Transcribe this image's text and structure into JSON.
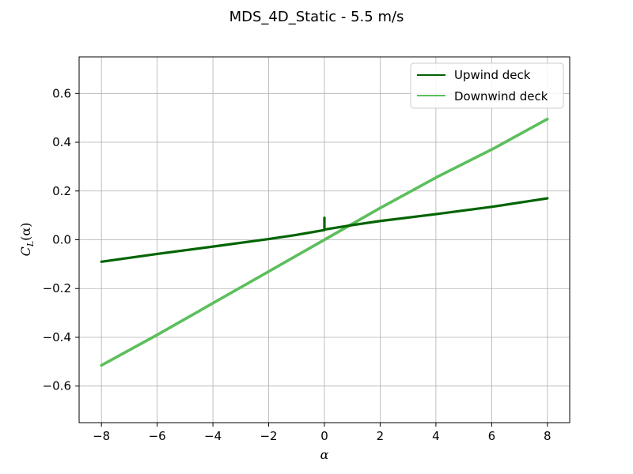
{
  "chart_data": {
    "type": "line",
    "title": "MDS_4D_Static - 5.5 m/s",
    "xlabel": "α",
    "ylabel_main": "C",
    "ylabel_sub": "L",
    "ylabel_arg": "(α)",
    "xlim": [
      -8.8,
      8.8
    ],
    "ylim": [
      -0.75,
      0.75
    ],
    "xticks": [
      -8,
      -6,
      -4,
      -2,
      0,
      2,
      4,
      6,
      8
    ],
    "xtick_labels": [
      "−8",
      "−6",
      "−4",
      "−2",
      "0",
      "2",
      "4",
      "6",
      "8"
    ],
    "yticks": [
      -0.6,
      -0.4,
      -0.2,
      0.0,
      0.2,
      0.4,
      0.6
    ],
    "ytick_labels": [
      "−0.6",
      "−0.4",
      "−0.2",
      "0.0",
      "0.2",
      "0.4",
      "0.6"
    ],
    "grid": true,
    "legend_position": "top-right",
    "series": [
      {
        "name": "Upwind deck",
        "color": "#006400",
        "x": [
          -8,
          -6,
          -4,
          -2,
          -1,
          0,
          0,
          0,
          1,
          2,
          4,
          6,
          8
        ],
        "y": [
          -0.09,
          -0.058,
          -0.028,
          0.003,
          0.02,
          0.04,
          0.09,
          0.042,
          0.06,
          0.077,
          0.105,
          0.135,
          0.17
        ]
      },
      {
        "name": "Downwind deck",
        "color": "#5cbf5c",
        "x": [
          -8,
          -6,
          -4,
          -2,
          0,
          2,
          4,
          6,
          8
        ],
        "y": [
          -0.515,
          -0.39,
          -0.26,
          -0.13,
          0.0,
          0.13,
          0.255,
          0.37,
          0.495
        ]
      }
    ]
  }
}
